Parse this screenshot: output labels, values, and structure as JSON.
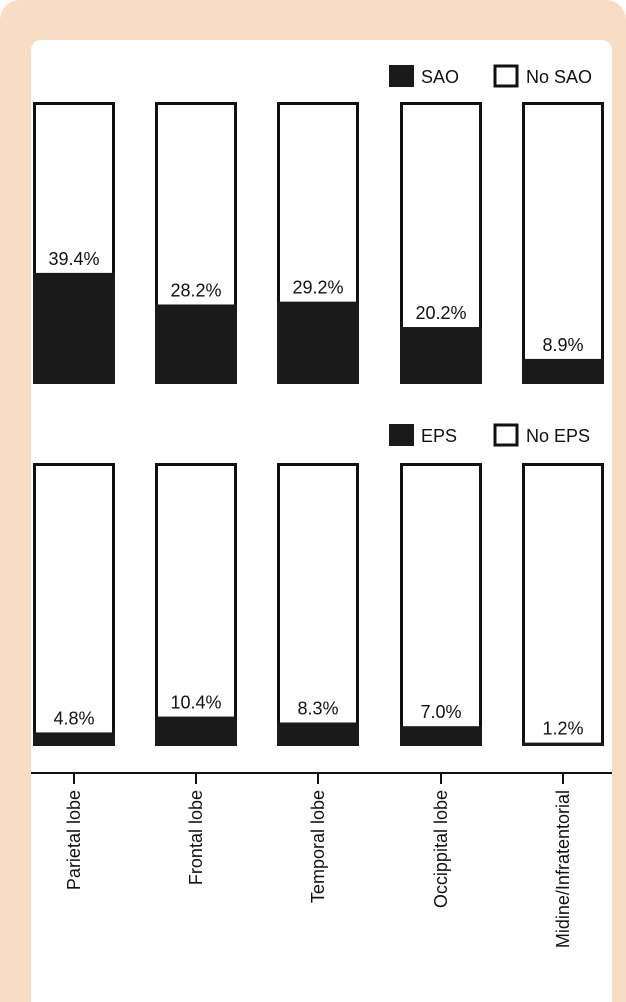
{
  "chart_data": [
    {
      "type": "bar",
      "stacked": true,
      "categories": [
        "Parietal lobe",
        "Frontal lobe",
        "Temporal lobe",
        "Occippital lobe",
        "Midine/Infratentorial"
      ],
      "series": [
        {
          "name": "SAO",
          "values": [
            39.4,
            28.2,
            29.2,
            20.2,
            8.9
          ],
          "color": "#1a1a1a"
        },
        {
          "name": "No SAO",
          "values": [
            60.6,
            71.8,
            70.8,
            79.8,
            91.1
          ],
          "color": "#ffffff"
        }
      ],
      "data_labels": [
        "39.4%",
        "28.2%",
        "29.2%",
        "20.2%",
        "8.9%"
      ],
      "ylim": [
        0,
        100
      ],
      "legend": "top-right"
    },
    {
      "type": "bar",
      "stacked": true,
      "categories": [
        "Parietal lobe",
        "Frontal lobe",
        "Temporal lobe",
        "Occippital lobe",
        "Midine/Infratentorial"
      ],
      "series": [
        {
          "name": "EPS",
          "values": [
            4.8,
            10.4,
            8.3,
            7.0,
            1.2
          ],
          "color": "#1a1a1a"
        },
        {
          "name": "No EPS",
          "values": [
            95.2,
            89.6,
            91.7,
            93.0,
            98.8
          ],
          "color": "#ffffff"
        }
      ],
      "data_labels": [
        "4.8%",
        "10.4%",
        "8.3%",
        "7.0%",
        "1.2%"
      ],
      "ylim": [
        0,
        100
      ],
      "legend": "top-right"
    }
  ]
}
